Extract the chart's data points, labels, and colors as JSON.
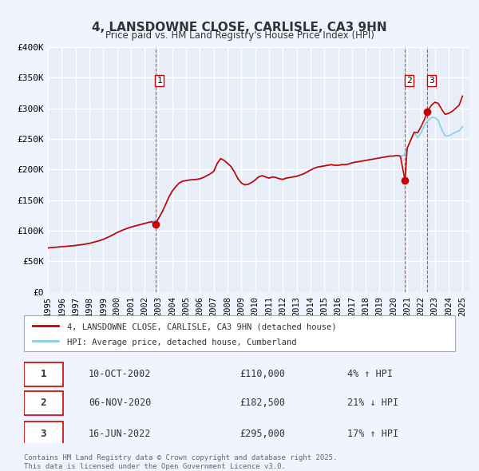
{
  "title": "4, LANSDOWNE CLOSE, CARLISLE, CA3 9HN",
  "subtitle": "Price paid vs. HM Land Registry's House Price Index (HPI)",
  "background_color": "#f0f4ff",
  "plot_bg_color": "#e8eef8",
  "grid_color": "#ffffff",
  "x_start": 1995.0,
  "x_end": 2025.5,
  "y_min": 0,
  "y_max": 400000,
  "y_ticks": [
    0,
    50000,
    100000,
    150000,
    200000,
    250000,
    300000,
    350000,
    400000
  ],
  "y_tick_labels": [
    "£0",
    "£50K",
    "£100K",
    "£150K",
    "£200K",
    "£250K",
    "£300K",
    "£350K",
    "£400K"
  ],
  "x_ticks": [
    1995,
    1996,
    1997,
    1998,
    1999,
    2000,
    2001,
    2002,
    2003,
    2004,
    2005,
    2006,
    2007,
    2008,
    2009,
    2010,
    2011,
    2012,
    2013,
    2014,
    2015,
    2016,
    2017,
    2018,
    2019,
    2020,
    2021,
    2022,
    2023,
    2024,
    2025
  ],
  "sale_line_color": "#cc0000",
  "hpi_line_color": "#87CEEB",
  "sale_marker_color": "#cc0000",
  "vline_color": "#cc0000",
  "vline_style": "--",
  "legend_box_color": "#ffffff",
  "legend_border_color": "#aaaaaa",
  "sale_legend_label": "4, LANSDOWNE CLOSE, CARLISLE, CA3 9HN (detached house)",
  "hpi_legend_label": "HPI: Average price, detached house, Cumberland",
  "transactions": [
    {
      "id": 1,
      "date": 2002.78,
      "price": 110000,
      "date_str": "10-OCT-2002",
      "price_str": "£110,000",
      "pct": "4% ↑ HPI"
    },
    {
      "id": 2,
      "date": 2020.84,
      "price": 182500,
      "date_str": "06-NOV-2020",
      "price_str": "£182,500",
      "pct": "21% ↓ HPI"
    },
    {
      "id": 3,
      "date": 2022.45,
      "price": 295000,
      "date_str": "16-JUN-2022",
      "price_str": "£295,000",
      "pct": "17% ↑ HPI"
    }
  ],
  "footer": "Contains HM Land Registry data © Crown copyright and database right 2025.\nThis data is licensed under the Open Government Licence v3.0.",
  "hpi_data_x": [
    1995.0,
    1995.25,
    1995.5,
    1995.75,
    1996.0,
    1996.25,
    1996.5,
    1996.75,
    1997.0,
    1997.25,
    1997.5,
    1997.75,
    1998.0,
    1998.25,
    1998.5,
    1998.75,
    1999.0,
    1999.25,
    1999.5,
    1999.75,
    2000.0,
    2000.25,
    2000.5,
    2000.75,
    2001.0,
    2001.25,
    2001.5,
    2001.75,
    2002.0,
    2002.25,
    2002.5,
    2002.75,
    2003.0,
    2003.25,
    2003.5,
    2003.75,
    2004.0,
    2004.25,
    2004.5,
    2004.75,
    2005.0,
    2005.25,
    2005.5,
    2005.75,
    2006.0,
    2006.25,
    2006.5,
    2006.75,
    2007.0,
    2007.25,
    2007.5,
    2007.75,
    2008.0,
    2008.25,
    2008.5,
    2008.75,
    2009.0,
    2009.25,
    2009.5,
    2009.75,
    2010.0,
    2010.25,
    2010.5,
    2010.75,
    2011.0,
    2011.25,
    2011.5,
    2011.75,
    2012.0,
    2012.25,
    2012.5,
    2012.75,
    2013.0,
    2013.25,
    2013.5,
    2013.75,
    2014.0,
    2014.25,
    2014.5,
    2014.75,
    2015.0,
    2015.25,
    2015.5,
    2015.75,
    2016.0,
    2016.25,
    2016.5,
    2016.75,
    2017.0,
    2017.25,
    2017.5,
    2017.75,
    2018.0,
    2018.25,
    2018.5,
    2018.75,
    2019.0,
    2019.25,
    2019.5,
    2019.75,
    2020.0,
    2020.25,
    2020.5,
    2020.75,
    2021.0,
    2021.25,
    2021.5,
    2021.75,
    2022.0,
    2022.25,
    2022.5,
    2022.75,
    2023.0,
    2023.25,
    2023.5,
    2023.75,
    2024.0,
    2024.25,
    2024.5,
    2024.75,
    2025.0
  ],
  "hpi_data_y": [
    72000,
    72500,
    73000,
    73500,
    74000,
    74500,
    75000,
    75500,
    76000,
    76800,
    77500,
    78500,
    79500,
    81000,
    82500,
    84000,
    86000,
    88500,
    91000,
    94000,
    97000,
    99500,
    102000,
    104000,
    106000,
    107500,
    109000,
    110500,
    112000,
    113500,
    115000,
    117000,
    120000,
    130000,
    142000,
    155000,
    165000,
    172000,
    178000,
    181000,
    182000,
    183000,
    183500,
    184000,
    185000,
    187000,
    190000,
    193000,
    197000,
    210000,
    218000,
    215000,
    210000,
    205000,
    196000,
    185000,
    178000,
    175000,
    176000,
    179000,
    183000,
    188000,
    190000,
    188000,
    186000,
    188000,
    187000,
    185000,
    184000,
    186000,
    187000,
    188000,
    189000,
    191000,
    193000,
    196000,
    199000,
    202000,
    204000,
    205000,
    206000,
    207000,
    208000,
    207000,
    207000,
    208000,
    208000,
    209000,
    211000,
    212000,
    213000,
    214000,
    215000,
    216000,
    217000,
    218000,
    219000,
    220000,
    221000,
    222000,
    222000,
    223000,
    222000,
    223000,
    235000,
    248000,
    261000,
    252000,
    260000,
    272000,
    280000,
    285000,
    285000,
    280000,
    265000,
    255000,
    255000,
    258000,
    261000,
    263000,
    270000
  ],
  "sale_data_x": [
    1995.0,
    1995.25,
    1995.5,
    1995.75,
    1996.0,
    1996.25,
    1996.5,
    1996.75,
    1997.0,
    1997.25,
    1997.5,
    1997.75,
    1998.0,
    1998.25,
    1998.5,
    1998.75,
    1999.0,
    1999.25,
    1999.5,
    1999.75,
    2000.0,
    2000.25,
    2000.5,
    2000.75,
    2001.0,
    2001.25,
    2001.5,
    2001.75,
    2002.0,
    2002.25,
    2002.5,
    2002.78,
    2003.0,
    2003.25,
    2003.5,
    2003.75,
    2004.0,
    2004.25,
    2004.5,
    2004.75,
    2005.0,
    2005.25,
    2005.5,
    2005.75,
    2006.0,
    2006.25,
    2006.5,
    2006.75,
    2007.0,
    2007.25,
    2007.5,
    2007.75,
    2008.0,
    2008.25,
    2008.5,
    2008.75,
    2009.0,
    2009.25,
    2009.5,
    2009.75,
    2010.0,
    2010.25,
    2010.5,
    2010.75,
    2011.0,
    2011.25,
    2011.5,
    2011.75,
    2012.0,
    2012.25,
    2012.5,
    2012.75,
    2013.0,
    2013.25,
    2013.5,
    2013.75,
    2014.0,
    2014.25,
    2014.5,
    2014.75,
    2015.0,
    2015.25,
    2015.5,
    2015.75,
    2016.0,
    2016.25,
    2016.5,
    2016.75,
    2017.0,
    2017.25,
    2017.5,
    2017.75,
    2018.0,
    2018.25,
    2018.5,
    2018.75,
    2019.0,
    2019.25,
    2019.5,
    2019.75,
    2020.0,
    2020.25,
    2020.5,
    2020.84,
    2021.0,
    2021.25,
    2021.5,
    2021.75,
    2022.0,
    2022.25,
    2022.45,
    2022.75,
    2023.0,
    2023.25,
    2023.5,
    2023.75,
    2024.0,
    2024.25,
    2024.5,
    2024.75,
    2025.0
  ],
  "sale_data_y": [
    72000,
    72500,
    73000,
    73500,
    74000,
    74500,
    75000,
    75500,
    76000,
    76800,
    77500,
    78500,
    79500,
    81000,
    82500,
    84000,
    86000,
    88500,
    91000,
    94000,
    97000,
    99500,
    102000,
    104000,
    106000,
    107500,
    109000,
    110500,
    112000,
    113500,
    115000,
    110000,
    120000,
    130000,
    142000,
    155000,
    165000,
    172000,
    178000,
    181000,
    182000,
    183000,
    183500,
    184000,
    185000,
    187000,
    190000,
    193000,
    197000,
    210000,
    218000,
    215000,
    210000,
    205000,
    196000,
    185000,
    178000,
    175000,
    176000,
    179000,
    183000,
    188000,
    190000,
    188000,
    186000,
    188000,
    187000,
    185000,
    184000,
    186000,
    187000,
    188000,
    189000,
    191000,
    193000,
    196000,
    199000,
    202000,
    204000,
    205000,
    206000,
    207000,
    208000,
    207000,
    207000,
    208000,
    208000,
    209000,
    211000,
    212000,
    213000,
    214000,
    215000,
    216000,
    217000,
    218000,
    219000,
    220000,
    221000,
    222000,
    222000,
    223000,
    222000,
    182500,
    235000,
    248000,
    261000,
    260000,
    270000,
    282000,
    295000,
    305000,
    310000,
    308000,
    298000,
    290000,
    292000,
    295000,
    300000,
    305000,
    320000
  ]
}
